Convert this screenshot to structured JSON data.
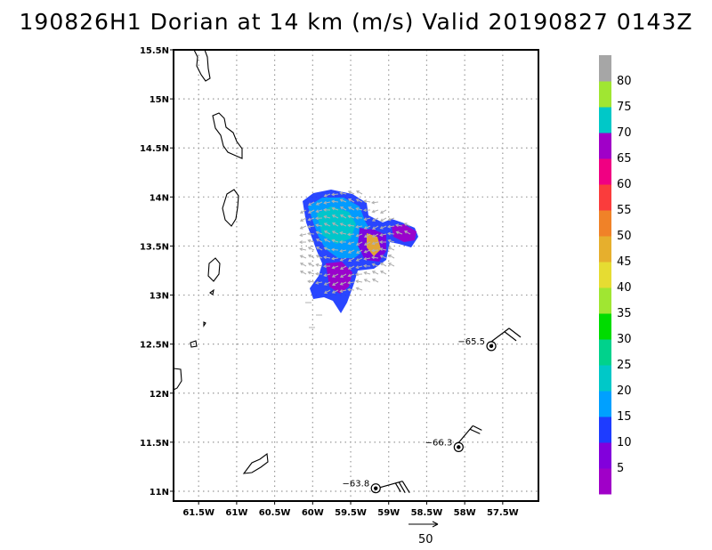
{
  "title": "190826H1 Dorian at 14 km (m/s) Valid 20190827 0143Z",
  "map": {
    "lon_range": [
      -61.83,
      -57.03
    ],
    "lat_range": [
      10.9,
      15.5
    ],
    "lon_ticks": [
      {
        "value": -61.5,
        "label": "61.5W"
      },
      {
        "value": -61,
        "label": "61W"
      },
      {
        "value": -60.5,
        "label": "60.5W"
      },
      {
        "value": -60,
        "label": "60W"
      },
      {
        "value": -59.5,
        "label": "59.5W"
      },
      {
        "value": -59,
        "label": "59W"
      },
      {
        "value": -58.5,
        "label": "58.5W"
      },
      {
        "value": -58,
        "label": "58W"
      },
      {
        "value": -57.5,
        "label": "57.5W"
      }
    ],
    "lat_ticks": [
      {
        "value": 15.5,
        "label": "15.5N"
      },
      {
        "value": 15,
        "label": "15N"
      },
      {
        "value": 14.5,
        "label": "14.5N"
      },
      {
        "value": 14,
        "label": "14N"
      },
      {
        "value": 13.5,
        "label": "13.5N"
      },
      {
        "value": 13,
        "label": "13N"
      },
      {
        "value": 12.5,
        "label": "12.5N"
      },
      {
        "value": 12,
        "label": "12N"
      },
      {
        "value": 11.5,
        "label": "11.5N"
      },
      {
        "value": 11,
        "label": "11N"
      }
    ],
    "grid": "dotted"
  },
  "colorbar": {
    "top_color": "#a6a6a6",
    "colors": [
      "#a000c8",
      "#8200dc",
      "#1e3cff",
      "#00a0ff",
      "#00c8c8",
      "#00d28c",
      "#00dc00",
      "#a0e632",
      "#e6dc32",
      "#e6af2d",
      "#f08228",
      "#fa3c3c",
      "#f00082",
      "#a000c8",
      "#00c8c8",
      "#a0e632",
      "#a6a6a6"
    ],
    "labels": [
      "5",
      "10",
      "15",
      "20",
      "25",
      "30",
      "35",
      "40",
      "45",
      "50",
      "55",
      "60",
      "65",
      "70",
      "75",
      "80"
    ]
  },
  "observations": [
    {
      "label": "−65.5",
      "lon": -57.65,
      "lat": 12.48
    },
    {
      "label": "−66.3",
      "lon": -58.08,
      "lat": 11.45
    },
    {
      "label": "−63.8",
      "lon": -59.17,
      "lat": 11.03
    }
  ],
  "reference_vector": {
    "label": "50"
  }
}
